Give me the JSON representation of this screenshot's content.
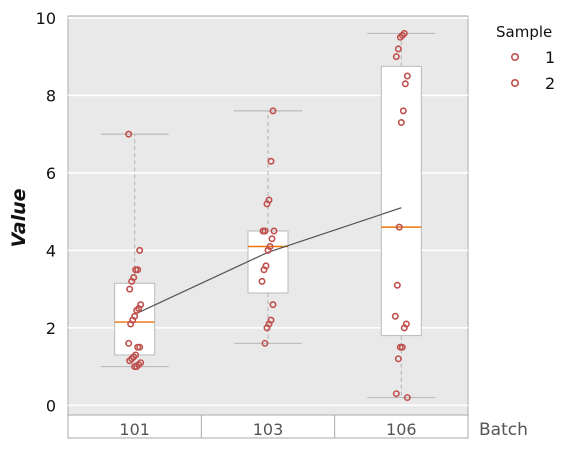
{
  "chart_data": {
    "type": "box",
    "title": "",
    "xlabel": "Batch",
    "ylabel": "Value",
    "ylim": [
      -0.25,
      10.05
    ],
    "yticks": [
      0,
      2,
      4,
      6,
      8,
      10
    ],
    "grid": true,
    "legend": {
      "title": "Sample",
      "position": "top-right-outside",
      "entries": [
        "1",
        "2"
      ]
    },
    "colors": {
      "panel": "#e9e9e9",
      "grid": "#ffffff",
      "box_fill": "#ffffff",
      "box_edge": "#bbbbbb",
      "median": "#e8740c",
      "whisker": "#bbbbbb",
      "points": "#c0504d",
      "trend": "#555555"
    },
    "categories": [
      "101",
      "103",
      "106"
    ],
    "boxes": [
      {
        "category": "101",
        "whisker_low": 1.0,
        "q1": 1.3,
        "median": 2.15,
        "q3": 3.15,
        "whisker_high": 7.0,
        "mean": 2.35
      },
      {
        "category": "103",
        "whisker_low": 1.6,
        "q1": 2.9,
        "median": 4.1,
        "q3": 4.5,
        "whisker_high": 7.6,
        "mean": 3.95
      },
      {
        "category": "106",
        "whisker_low": 0.2,
        "q1": 1.8,
        "median": 4.6,
        "q3": 8.75,
        "whisker_high": 9.6,
        "mean": 5.1
      }
    ],
    "points": [
      {
        "category": "101",
        "values": [
          7.0,
          4.0,
          3.5,
          3.5,
          3.3,
          3.2,
          3.0,
          2.6,
          2.5,
          2.45,
          2.3,
          2.2,
          2.1,
          1.6,
          1.5,
          1.5,
          1.3,
          1.25,
          1.2,
          1.15,
          1.1,
          1.05,
          1.0,
          1.0
        ]
      },
      {
        "category": "103",
        "values": [
          7.6,
          6.3,
          5.3,
          5.2,
          4.5,
          4.5,
          4.5,
          4.3,
          4.1,
          4.0,
          3.6,
          3.5,
          3.2,
          2.6,
          2.2,
          2.1,
          2.0,
          1.6
        ]
      },
      {
        "category": "106",
        "values": [
          9.6,
          9.55,
          9.5,
          9.2,
          9.0,
          8.5,
          8.3,
          7.6,
          7.3,
          4.6,
          3.1,
          2.3,
          2.1,
          2.0,
          1.5,
          1.5,
          1.2,
          0.3,
          0.2
        ]
      }
    ]
  }
}
